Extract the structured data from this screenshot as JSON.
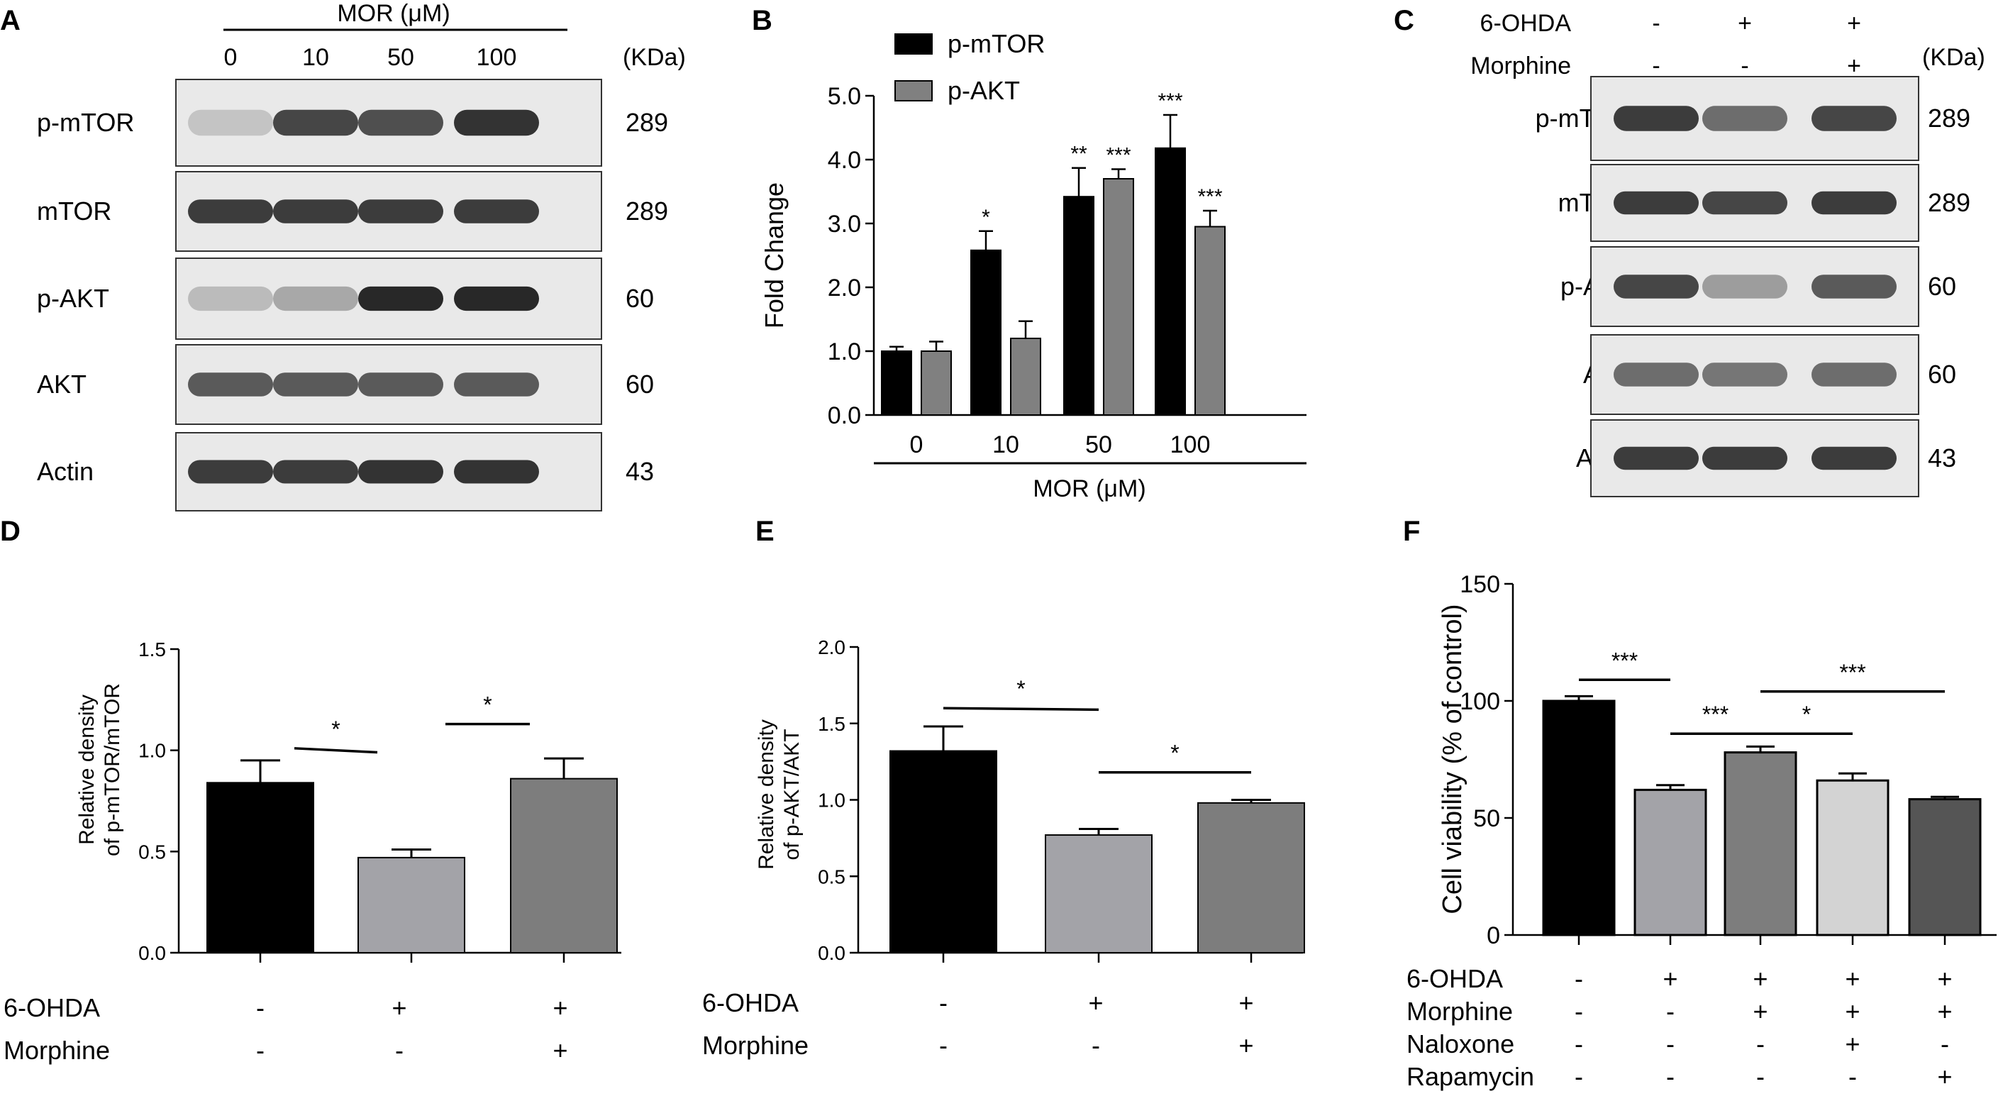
{
  "panels": [
    {
      "letter": "A"
    },
    {
      "letter": "B"
    },
    {
      "letter": "C"
    },
    {
      "letter": "D"
    },
    {
      "letter": "E"
    },
    {
      "letter": "F"
    }
  ],
  "blot_a": {
    "treatment_label": "MOR (μM)",
    "doses": [
      "0",
      "10",
      "50",
      "100"
    ],
    "kda_header": "(KDa)",
    "rows": [
      {
        "label": "p-mTOR",
        "kda": "289",
        "intensity": [
          0.15,
          0.8,
          0.75,
          0.9
        ]
      },
      {
        "label": "mTOR",
        "kda": "289",
        "intensity": [
          0.85,
          0.85,
          0.85,
          0.85
        ]
      },
      {
        "label": "p-AKT",
        "kda": "60",
        "intensity": [
          0.2,
          0.3,
          0.95,
          0.95
        ]
      },
      {
        "label": "AKT",
        "kda": "60",
        "intensity": [
          0.7,
          0.7,
          0.7,
          0.7
        ]
      },
      {
        "label": "Actin",
        "kda": "43",
        "intensity": [
          0.85,
          0.85,
          0.9,
          0.9
        ]
      }
    ]
  },
  "blot_c": {
    "kda_header": "(KDa)",
    "conditions": [
      {
        "label": "6-OHDA",
        "values": [
          "-",
          "+",
          "+"
        ]
      },
      {
        "label": "Morphine",
        "values": [
          "-",
          "-",
          "+"
        ]
      }
    ],
    "rows": [
      {
        "label": "p-mTOR",
        "kda": "289",
        "intensity": [
          0.85,
          0.6,
          0.8
        ]
      },
      {
        "label": "mTOR",
        "kda": "289",
        "intensity": [
          0.85,
          0.8,
          0.85
        ]
      },
      {
        "label": "p-AKT",
        "kda": "60",
        "intensity": [
          0.8,
          0.35,
          0.7
        ]
      },
      {
        "label": "AKT",
        "kda": "60",
        "intensity": [
          0.6,
          0.55,
          0.6
        ]
      },
      {
        "label": "Actin",
        "kda": "43",
        "intensity": [
          0.85,
          0.85,
          0.85
        ]
      }
    ]
  },
  "chart_data": [
    {
      "panel": "B",
      "type": "bar",
      "categories": [
        "0",
        "10",
        "50",
        "100"
      ],
      "xlabel": "MOR (μM)",
      "ylabel": "Fold Change",
      "ylim": [
        0,
        5
      ],
      "yticks": [
        "0.0",
        "1.0",
        "2.0",
        "3.0",
        "4.0",
        "5.0"
      ],
      "legend": "top-left",
      "series": [
        {
          "name": "p-mTOR",
          "color": "#000000",
          "values": [
            1.0,
            2.58,
            3.42,
            4.18
          ],
          "errors": [
            0.07,
            0.3,
            0.45,
            0.52
          ],
          "sig": [
            "",
            "*",
            "**",
            "***"
          ]
        },
        {
          "name": "p-AKT",
          "color": "#808080",
          "values": [
            1.0,
            1.2,
            3.7,
            2.95
          ],
          "errors": [
            0.15,
            0.27,
            0.15,
            0.25
          ],
          "sig": [
            "",
            "",
            "***",
            "***"
          ]
        }
      ]
    },
    {
      "panel": "D",
      "type": "bar",
      "ylabel_lines": [
        "Relative density",
        "of p-mTOR/mTOR"
      ],
      "ylim": [
        0,
        1.5
      ],
      "yticks": [
        "0.0",
        "0.5",
        "1.0",
        "1.5"
      ],
      "values": [
        0.84,
        0.47,
        0.86
      ],
      "errors": [
        0.11,
        0.04,
        0.1
      ],
      "colors": [
        "#000000",
        "#a3a3a8",
        "#7d7d7d"
      ],
      "sig_lines": [
        {
          "from_bar": 0,
          "to_bar": 1,
          "y_start": 1.01,
          "y_end": 0.99,
          "label": "*"
        },
        {
          "from_bar": 1,
          "to_bar": 2,
          "y_start": 1.13,
          "y_end": 1.13,
          "label": "*"
        }
      ],
      "conditions": [
        {
          "label": "6-OHDA",
          "values": [
            "-",
            "+",
            "+"
          ]
        },
        {
          "label": "Morphine",
          "values": [
            "-",
            "-",
            "+"
          ]
        }
      ]
    },
    {
      "panel": "E",
      "type": "bar",
      "ylabel_lines": [
        "Relative density",
        "of p-AKT/AKT"
      ],
      "ylim": [
        0,
        2.0
      ],
      "yticks": [
        "0.0",
        "0.5",
        "1.0",
        "1.5",
        "2.0"
      ],
      "values": [
        1.32,
        0.77,
        0.98
      ],
      "errors": [
        0.16,
        0.04,
        0.02
      ],
      "colors": [
        "#000000",
        "#a3a3a8",
        "#7d7d7d"
      ],
      "sig_lines": [
        {
          "from_bar": 0,
          "to_bar": 1,
          "y_start": 1.6,
          "y_end": 1.59,
          "label": "*"
        },
        {
          "from_bar": 1,
          "to_bar": 2,
          "y_start": 1.18,
          "y_end": 1.18,
          "label": "*"
        }
      ],
      "conditions": [
        {
          "label": "6-OHDA",
          "values": [
            "-",
            "+",
            "+"
          ]
        },
        {
          "label": "Morphine",
          "values": [
            "-",
            "-",
            "+"
          ]
        }
      ]
    },
    {
      "panel": "F",
      "type": "bar",
      "ylabel": "Cell viability (% of control)",
      "ylim": [
        0,
        150
      ],
      "yticks": [
        "0",
        "50",
        "100",
        "150"
      ],
      "values": [
        100,
        62,
        78,
        66,
        58
      ],
      "errors": [
        2,
        2,
        2.5,
        3,
        1
      ],
      "colors": [
        "#000000",
        "#a3a3a8",
        "#7d7d7d",
        "#d3d3d3",
        "#555555"
      ],
      "sig_lines": [
        {
          "from_bar": 0,
          "to_bar": 1,
          "y": 109,
          "label": "***"
        },
        {
          "from_bar": 1,
          "to_bar": 2,
          "y": 86,
          "label": "***"
        },
        {
          "from_bar": 2,
          "to_bar": 3,
          "y": 86,
          "label": "*"
        },
        {
          "from_bar": 2,
          "to_bar": 4,
          "y": 104,
          "label": "***"
        }
      ],
      "conditions": [
        {
          "label": "6-OHDA",
          "values": [
            "-",
            "+",
            "+",
            "+",
            "+"
          ]
        },
        {
          "label": "Morphine",
          "values": [
            "-",
            "-",
            "+",
            "+",
            "+"
          ]
        },
        {
          "label": "Naloxone",
          "values": [
            "-",
            "-",
            "-",
            "+",
            "-"
          ]
        },
        {
          "label": "Rapamycin",
          "values": [
            "-",
            "-",
            "-",
            "-",
            "+"
          ]
        }
      ]
    }
  ]
}
